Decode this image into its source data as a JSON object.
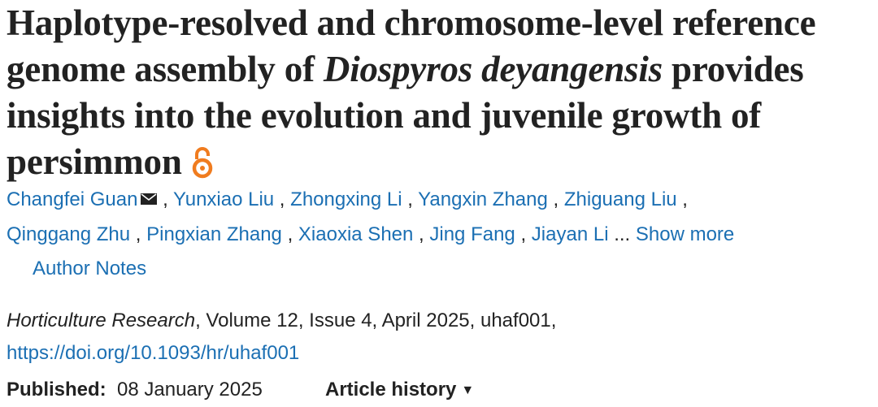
{
  "article": {
    "title_part1": "Haplotype-resolved and chromosome-level reference genome assembly of ",
    "title_species": "Diospyros deyangensis",
    "title_part2": " provides insights into the evolution and juvenile growth of persimmon",
    "open_access_icon": "open-access-lock-icon",
    "authors": [
      "Changfei Guan",
      "Yunxiao Liu",
      "Zhongxing Li",
      "Yangxin Zhang",
      "Zhiguang Liu",
      "Qinggang Zhu",
      "Pingxian Zhang",
      "Xiaoxia Shen",
      "Jing Fang",
      "Jiayan Li"
    ],
    "author_separator": " , ",
    "ellipsis": " ...",
    "show_more_label": "Show more",
    "author_notes_label": "Author Notes",
    "journal": "Horticulture Research",
    "citation_rest": ", Volume 12, Issue 4, April 2025, uhaf001,",
    "doi": "https://doi.org/10.1093/hr/uhaf001",
    "published_label": "Published:",
    "published_date": "08 January 2025",
    "article_history_label": "Article history",
    "colors": {
      "link": "#1b6fb3",
      "text": "#222222",
      "oa_icon": "#f07c1f"
    }
  }
}
